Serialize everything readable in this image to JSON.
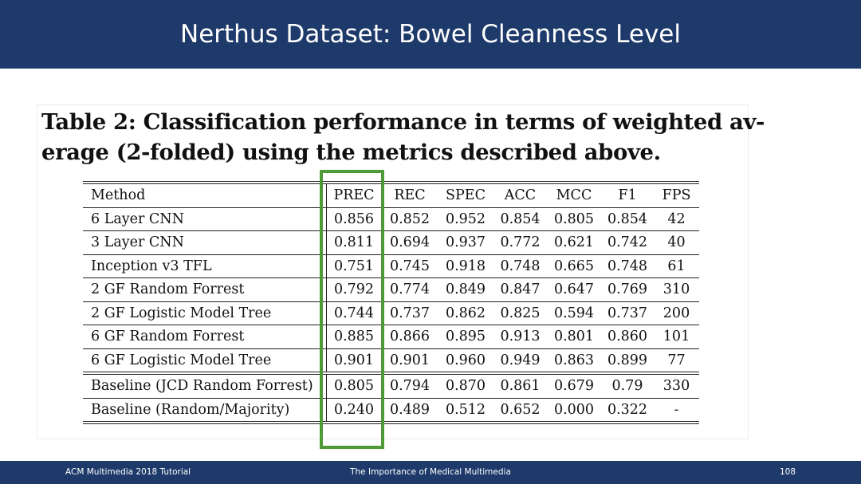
{
  "slide": {
    "title": "Nerthus Dataset: Bowel Cleanness Level"
  },
  "table": {
    "caption_line1": "Table 2: Classification performance in terms of weighted av-",
    "caption_line2": "erage (2-folded) using the metrics described above.",
    "columns": [
      "Method",
      "PREC",
      "REC",
      "SPEC",
      "ACC",
      "MCC",
      "F1",
      "FPS"
    ],
    "rows": [
      [
        "6 Layer CNN",
        "0.856",
        "0.852",
        "0.952",
        "0.854",
        "0.805",
        "0.854",
        "42"
      ],
      [
        "3 Layer CNN",
        "0.811",
        "0.694",
        "0.937",
        "0.772",
        "0.621",
        "0.742",
        "40"
      ],
      [
        "Inception v3 TFL",
        "0.751",
        "0.745",
        "0.918",
        "0.748",
        "0.665",
        "0.748",
        "61"
      ],
      [
        "2 GF Random Forrest",
        "0.792",
        "0.774",
        "0.849",
        "0.847",
        "0.647",
        "0.769",
        "310"
      ],
      [
        "2 GF Logistic Model Tree",
        "0.744",
        "0.737",
        "0.862",
        "0.825",
        "0.594",
        "0.737",
        "200"
      ],
      [
        "6 GF Random Forrest",
        "0.885",
        "0.866",
        "0.895",
        "0.913",
        "0.801",
        "0.860",
        "101"
      ],
      [
        "6 GF Logistic Model Tree",
        "0.901",
        "0.901",
        "0.960",
        "0.949",
        "0.863",
        "0.899",
        "77"
      ],
      [
        "Baseline (JCD Random Forrest)",
        "0.805",
        "0.794",
        "0.870",
        "0.861",
        "0.679",
        "0.79",
        "330"
      ],
      [
        "Baseline (Random/Majority)",
        "0.240",
        "0.489",
        "0.512",
        "0.652",
        "0.000",
        "0.322",
        "-"
      ]
    ],
    "highlight_color": "#4e9b35"
  },
  "footer": {
    "left": "ACM Multimedia 2018 Tutorial",
    "center": "The Importance of Medical Multimedia",
    "page": "108"
  },
  "colors": {
    "header_bg": "#1e3a6b",
    "footer_bg": "#1e3a6b"
  }
}
